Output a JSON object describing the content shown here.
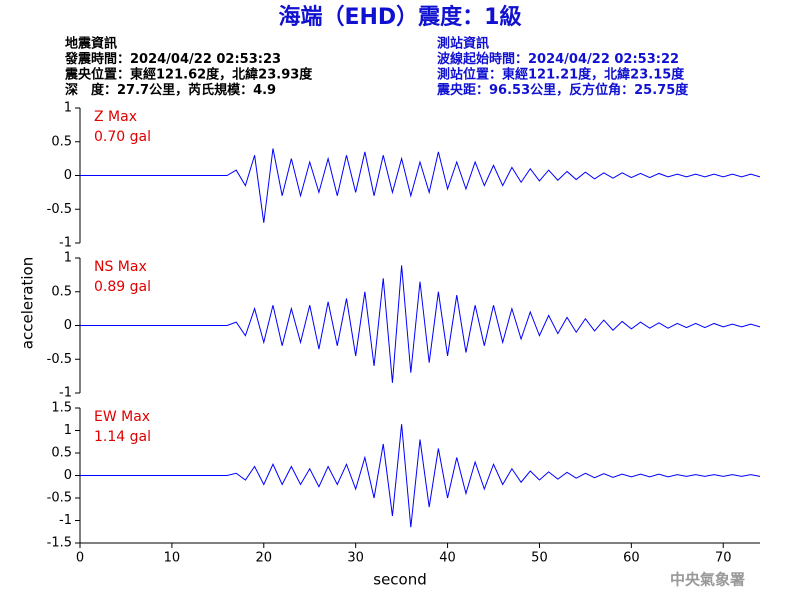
{
  "title": "海端（EHD）震度：1級",
  "info_left": [
    "地震資訊",
    "發震時間：2024/04/22 02:53:23",
    "震央位置：東經121.62度，北緯23.93度",
    "深　度：27.7公里，芮氏規模：4.9"
  ],
  "info_right": [
    "測站資訊",
    "波線起始時間：2024/04/22 02:53:22",
    "測站位置：東經121.21度，北緯23.15度",
    "震央距：96.53公里，反方位角：25.75度"
  ],
  "y_label": "acceleration",
  "footer": "中央氣象署",
  "chart_data": [
    {
      "type": "line",
      "name": "Z Max",
      "max_label": "0.70 gal",
      "color": "#0000ff",
      "xlim": [
        0,
        74
      ],
      "ylim": [
        -1,
        1
      ],
      "yticks": [
        -1,
        -0.5,
        0,
        0.5,
        1
      ],
      "x": [
        0,
        16,
        17,
        18,
        19,
        20,
        21,
        22,
        23,
        24,
        25,
        26,
        27,
        28,
        29,
        30,
        31,
        32,
        33,
        34,
        35,
        36,
        37,
        38,
        39,
        40,
        41,
        42,
        43,
        44,
        45,
        46,
        47,
        48,
        49,
        50,
        51,
        52,
        53,
        54,
        55,
        56,
        57,
        58,
        59,
        60,
        61,
        62,
        63,
        64,
        65,
        66,
        67,
        68,
        69,
        70,
        71,
        72,
        73,
        74
      ],
      "values": [
        0,
        0,
        0.08,
        -0.15,
        0.3,
        -0.7,
        0.4,
        -0.3,
        0.25,
        -0.3,
        0.2,
        -0.25,
        0.25,
        -0.3,
        0.3,
        -0.25,
        0.35,
        -0.3,
        0.3,
        -0.25,
        0.25,
        -0.3,
        0.2,
        -0.25,
        0.35,
        -0.2,
        0.2,
        -0.2,
        0.2,
        -0.15,
        0.15,
        -0.15,
        0.12,
        -0.1,
        0.1,
        -0.08,
        0.08,
        -0.07,
        0.06,
        -0.06,
        0.05,
        -0.05,
        0.04,
        -0.04,
        0.04,
        -0.03,
        0.03,
        -0.03,
        0.03,
        -0.02,
        0.02,
        -0.02,
        0.02,
        -0.02,
        0.02,
        -0.02,
        0.02,
        -0.02,
        0.02,
        -0.02
      ]
    },
    {
      "type": "line",
      "name": "NS Max",
      "max_label": "0.89 gal",
      "color": "#0000ff",
      "xlim": [
        0,
        74
      ],
      "ylim": [
        -1,
        1
      ],
      "yticks": [
        -1,
        -0.5,
        0,
        0.5,
        1
      ],
      "x": [
        0,
        16,
        17,
        18,
        19,
        20,
        21,
        22,
        23,
        24,
        25,
        26,
        27,
        28,
        29,
        30,
        31,
        32,
        33,
        34,
        35,
        36,
        37,
        38,
        39,
        40,
        41,
        42,
        43,
        44,
        45,
        46,
        47,
        48,
        49,
        50,
        51,
        52,
        53,
        54,
        55,
        56,
        57,
        58,
        59,
        60,
        61,
        62,
        63,
        64,
        65,
        66,
        67,
        68,
        69,
        70,
        71,
        72,
        73,
        74
      ],
      "values": [
        0,
        0,
        0.05,
        -0.15,
        0.25,
        -0.25,
        0.3,
        -0.3,
        0.25,
        -0.25,
        0.3,
        -0.35,
        0.35,
        -0.3,
        0.4,
        -0.45,
        0.5,
        -0.6,
        0.7,
        -0.85,
        0.89,
        -0.7,
        0.65,
        -0.55,
        0.5,
        -0.45,
        0.45,
        -0.4,
        0.3,
        -0.3,
        0.3,
        -0.25,
        0.25,
        -0.2,
        0.2,
        -0.15,
        0.15,
        -0.12,
        0.12,
        -0.1,
        0.1,
        -0.08,
        0.08,
        -0.07,
        0.06,
        -0.05,
        0.05,
        -0.04,
        0.04,
        -0.04,
        0.03,
        -0.03,
        0.03,
        -0.03,
        0.03,
        -0.02,
        0.02,
        -0.02,
        0.02,
        -0.02
      ]
    },
    {
      "type": "line",
      "name": "EW Max",
      "max_label": "1.14 gal",
      "color": "#0000ff",
      "xlim": [
        0,
        74
      ],
      "ylim": [
        -1.5,
        1.5
      ],
      "yticks": [
        -1.5,
        -1,
        -0.5,
        0,
        0.5,
        1,
        1.5
      ],
      "xticks": [
        0,
        10,
        20,
        30,
        40,
        50,
        60,
        70
      ],
      "x_label": "second",
      "x": [
        0,
        16,
        17,
        18,
        19,
        20,
        21,
        22,
        23,
        24,
        25,
        26,
        27,
        28,
        29,
        30,
        31,
        32,
        33,
        34,
        35,
        36,
        37,
        38,
        39,
        40,
        41,
        42,
        43,
        44,
        45,
        46,
        47,
        48,
        49,
        50,
        51,
        52,
        53,
        54,
        55,
        56,
        57,
        58,
        59,
        60,
        61,
        62,
        63,
        64,
        65,
        66,
        67,
        68,
        69,
        70,
        71,
        72,
        73,
        74
      ],
      "values": [
        0,
        0,
        0.05,
        -0.1,
        0.2,
        -0.2,
        0.25,
        -0.2,
        0.2,
        -0.2,
        0.15,
        -0.25,
        0.2,
        -0.2,
        0.25,
        -0.3,
        0.4,
        -0.5,
        0.7,
        -0.9,
        1.14,
        -1.15,
        0.8,
        -0.7,
        0.6,
        -0.5,
        0.4,
        -0.4,
        0.3,
        -0.3,
        0.25,
        -0.2,
        0.15,
        -0.15,
        0.1,
        -0.1,
        0.08,
        -0.08,
        0.07,
        -0.06,
        0.05,
        -0.05,
        0.04,
        -0.04,
        0.03,
        -0.03,
        0.03,
        -0.03,
        0.03,
        -0.03,
        0.02,
        -0.02,
        0.02,
        -0.02,
        0.02,
        -0.02,
        0.02,
        -0.02,
        0.02,
        -0.02
      ]
    }
  ]
}
